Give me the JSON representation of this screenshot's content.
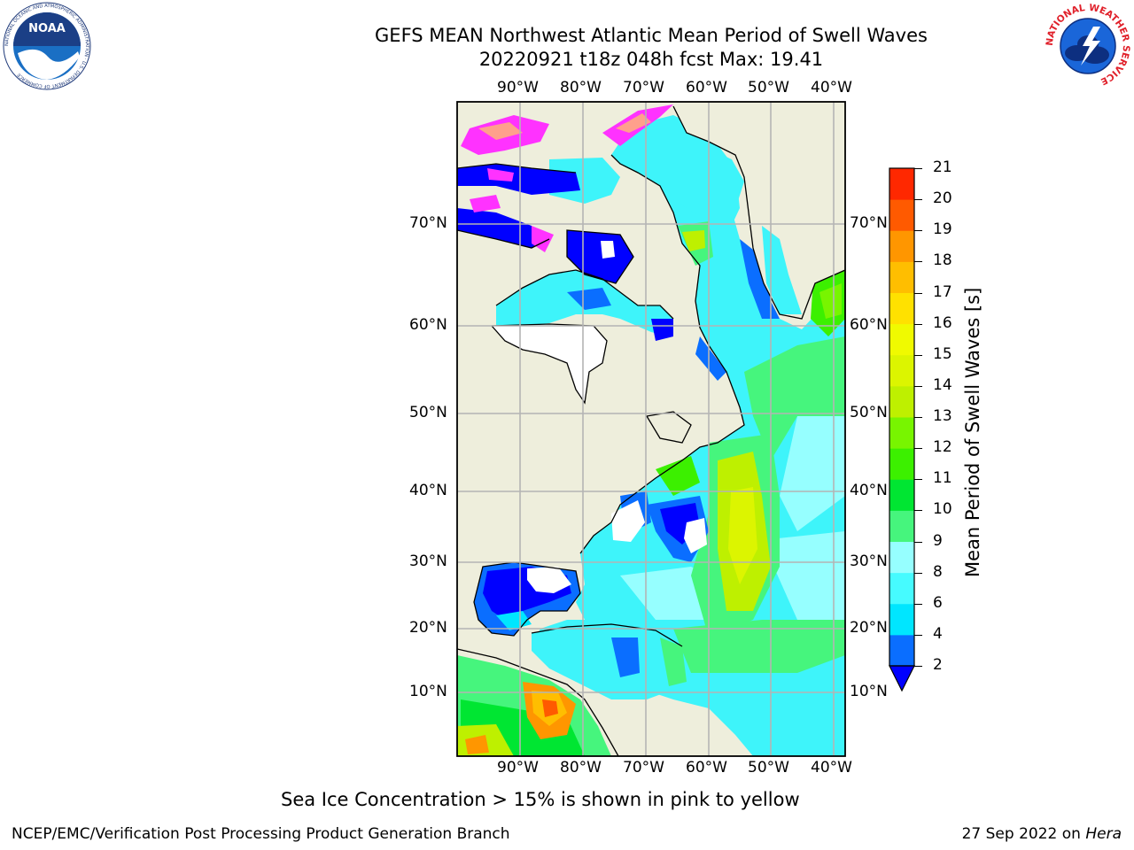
{
  "title": {
    "line1": "GEFS MEAN Northwest Atlantic Mean Period of Swell Waves",
    "line2": "20220921 t18z 048h fcst   Max: 19.41"
  },
  "map": {
    "lon_labels": [
      "90°W",
      "80°W",
      "70°W",
      "60°W",
      "50°W",
      "40°W"
    ],
    "lat_labels": [
      "70°N",
      "60°N",
      "50°N",
      "40°N",
      "30°N",
      "20°N",
      "10°N"
    ]
  },
  "colorbar": {
    "title": "Mean Period of Swell Waves [s]",
    "ticks": [
      "2",
      "4",
      "6",
      "8",
      "9",
      "10",
      "11",
      "12",
      "13",
      "14",
      "15",
      "16",
      "17",
      "18",
      "19",
      "20",
      "21"
    ],
    "colors": [
      "#0a6eff",
      "#00e6ff",
      "#46fbff",
      "#96ffff",
      "#46f57d",
      "#00e632",
      "#3cf000",
      "#78f500",
      "#bef000",
      "#dcf500",
      "#f0fa00",
      "#ffe100",
      "#ffbe00",
      "#ff9600",
      "#ff5a00",
      "#ff2800",
      "#ff0000"
    ],
    "under_color": "#0000ff"
  },
  "caption": "Sea Ice Concentration > 15% is shown in pink to yellow",
  "footer": {
    "left": "NCEP/EMC/Verification Post Processing Product Generation Branch",
    "right_prefix": "27 Sep 2022 on ",
    "right_italic": "Hera"
  },
  "logos": {
    "noaa_text": "NOAA",
    "noaa_ring": "NATIONAL OCEANIC AND ATMOSPHERIC ADMINISTRATION · U.S. DEPARTMENT OF COMMERCE",
    "nws_ring": "NATIONAL WEATHER SERVICE"
  }
}
